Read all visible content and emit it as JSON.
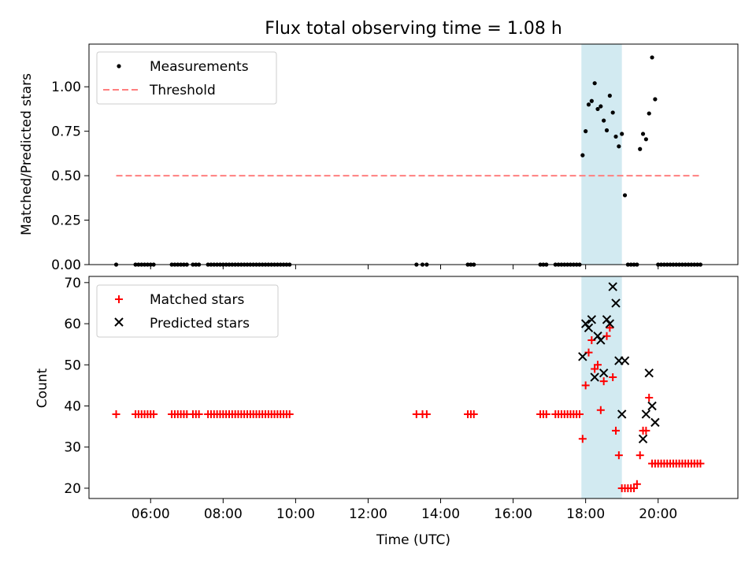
{
  "chart_data": [
    {
      "type": "scatter",
      "title": "Flux total observing time = 1.08 h",
      "ylabel": "Matched/Predicted stars",
      "xlim_hours": [
        4.3,
        22.2
      ],
      "ylim": [
        0,
        1.24
      ],
      "yticks": [
        "0.00",
        "0.25",
        "0.50",
        "0.75",
        "1.00"
      ],
      "shaded_region": {
        "from": "17:53",
        "to": "19:00",
        "color": "#add8e6"
      },
      "legend": {
        "placement": "top-left",
        "entries": [
          "Measurements",
          "Threshold"
        ]
      },
      "threshold": {
        "name": "Threshold",
        "value": 0.5,
        "x_start": "05:03",
        "x_end": "21:10",
        "color": "#ff7f7f",
        "style": "dashed"
      },
      "measurements": {
        "name": "Measurements",
        "color": "#000000",
        "x": [
          "05:03",
          "05:35",
          "05:40",
          "05:45",
          "05:50",
          "05:55",
          "06:00",
          "06:05",
          "06:35",
          "06:40",
          "06:45",
          "06:50",
          "06:55",
          "07:00",
          "07:10",
          "07:15",
          "07:20",
          "07:35",
          "07:40",
          "07:45",
          "07:50",
          "07:55",
          "08:00",
          "08:05",
          "08:10",
          "08:15",
          "08:20",
          "08:25",
          "08:30",
          "08:35",
          "08:40",
          "08:45",
          "08:50",
          "08:55",
          "09:00",
          "09:05",
          "09:10",
          "09:15",
          "09:20",
          "09:25",
          "09:30",
          "09:35",
          "09:40",
          "09:45",
          "09:50",
          "13:20",
          "13:30",
          "13:37",
          "14:45",
          "14:50",
          "14:55",
          "16:45",
          "16:50",
          "16:55",
          "17:10",
          "17:15",
          "17:20",
          "17:25",
          "17:30",
          "17:35",
          "17:40",
          "17:45",
          "17:50",
          "17:55",
          "18:00",
          "18:05",
          "18:10",
          "18:15",
          "18:20",
          "18:25",
          "18:30",
          "18:35",
          "18:40",
          "18:45",
          "18:50",
          "18:55",
          "19:00",
          "19:05",
          "19:10",
          "19:15",
          "19:20",
          "19:25",
          "19:30",
          "19:35",
          "19:40",
          "19:45",
          "19:50",
          "19:55",
          "20:00",
          "20:05",
          "20:10",
          "20:15",
          "20:20",
          "20:25",
          "20:30",
          "20:35",
          "20:40",
          "20:45",
          "20:50",
          "20:55",
          "21:00",
          "21:05",
          "21:10"
        ],
        "y": [
          0,
          0,
          0,
          0,
          0,
          0,
          0,
          0,
          0,
          0,
          0,
          0,
          0,
          0,
          0,
          0,
          0,
          0,
          0,
          0,
          0,
          0,
          0,
          0,
          0,
          0,
          0,
          0,
          0,
          0,
          0,
          0,
          0,
          0,
          0,
          0,
          0,
          0,
          0,
          0,
          0,
          0,
          0,
          0,
          0,
          0,
          0,
          0,
          0,
          0,
          0,
          0,
          0,
          0,
          0,
          0,
          0,
          0,
          0,
          0,
          0,
          0,
          0,
          0.615,
          0.75,
          0.9,
          0.92,
          1.02,
          0.875,
          0.89,
          0.81,
          0.755,
          0.95,
          0.855,
          0.72,
          0.665,
          0.735,
          0.39,
          0,
          0,
          0,
          0,
          0.65,
          0.735,
          0.705,
          0.85,
          1.165,
          0.93,
          0,
          0,
          0,
          0,
          0,
          0,
          0,
          0,
          0,
          0,
          0,
          0,
          0,
          0,
          0
        ]
      }
    },
    {
      "type": "scatter",
      "xlabel": "Time (UTC)",
      "ylabel": "Count",
      "xlim_hours": [
        4.3,
        22.2
      ],
      "xticks": [
        "06:00",
        "08:00",
        "10:00",
        "12:00",
        "14:00",
        "16:00",
        "18:00",
        "20:00"
      ],
      "ylim": [
        17.5,
        71.5
      ],
      "yticks": [
        "20",
        "30",
        "40",
        "50",
        "60",
        "70"
      ],
      "shaded_region": {
        "from": "17:53",
        "to": "19:00",
        "color": "#add8e6"
      },
      "legend": {
        "placement": "top-left",
        "entries": [
          "Matched stars",
          "Predicted stars"
        ]
      },
      "series": [
        {
          "name": "Matched stars",
          "marker": "+",
          "color": "#ff0000",
          "x": [
            "05:03",
            "05:35",
            "05:40",
            "05:45",
            "05:50",
            "05:55",
            "06:00",
            "06:05",
            "06:35",
            "06:40",
            "06:45",
            "06:50",
            "06:55",
            "07:00",
            "07:10",
            "07:15",
            "07:20",
            "07:35",
            "07:40",
            "07:45",
            "07:50",
            "07:55",
            "08:00",
            "08:05",
            "08:10",
            "08:15",
            "08:20",
            "08:25",
            "08:30",
            "08:35",
            "08:40",
            "08:45",
            "08:50",
            "08:55",
            "09:00",
            "09:05",
            "09:10",
            "09:15",
            "09:20",
            "09:25",
            "09:30",
            "09:35",
            "09:40",
            "09:45",
            "09:50",
            "13:20",
            "13:30",
            "13:37",
            "14:45",
            "14:50",
            "14:55",
            "16:45",
            "16:50",
            "16:55",
            "17:10",
            "17:15",
            "17:20",
            "17:25",
            "17:30",
            "17:35",
            "17:40",
            "17:45",
            "17:50",
            "17:55",
            "18:00",
            "18:05",
            "18:10",
            "18:15",
            "18:20",
            "18:25",
            "18:30",
            "18:35",
            "18:40",
            "18:45",
            "18:50",
            "18:55",
            "19:00",
            "19:05",
            "19:10",
            "19:15",
            "19:20",
            "19:25",
            "19:30",
            "19:35",
            "19:40",
            "19:45",
            "19:50",
            "19:55",
            "20:00",
            "20:05",
            "20:10",
            "20:15",
            "20:20",
            "20:25",
            "20:30",
            "20:35",
            "20:40",
            "20:45",
            "20:50",
            "20:55",
            "21:00",
            "21:05",
            "21:10"
          ],
          "y": [
            38,
            38,
            38,
            38,
            38,
            38,
            38,
            38,
            38,
            38,
            38,
            38,
            38,
            38,
            38,
            38,
            38,
            38,
            38,
            38,
            38,
            38,
            38,
            38,
            38,
            38,
            38,
            38,
            38,
            38,
            38,
            38,
            38,
            38,
            38,
            38,
            38,
            38,
            38,
            38,
            38,
            38,
            38,
            38,
            38,
            38,
            38,
            38,
            38,
            38,
            38,
            38,
            38,
            38,
            38,
            38,
            38,
            38,
            38,
            38,
            38,
            38,
            38,
            32,
            45,
            53,
            56,
            49,
            50,
            39,
            46,
            57,
            59,
            47,
            34,
            28,
            20,
            20,
            20,
            20,
            20,
            21,
            28,
            34,
            34,
            42,
            26,
            26,
            26,
            26,
            26,
            26,
            26,
            26,
            26,
            26,
            26,
            26,
            26,
            26,
            26,
            26,
            26
          ]
        },
        {
          "name": "Predicted stars",
          "marker": "x",
          "color": "#000000",
          "x": [
            "17:55",
            "18:00",
            "18:05",
            "18:10",
            "18:15",
            "18:20",
            "18:25",
            "18:30",
            "18:35",
            "18:40",
            "18:45",
            "18:50",
            "18:55",
            "19:00",
            "19:05",
            "19:35",
            "19:40",
            "19:45",
            "19:50",
            "19:55"
          ],
          "y": [
            52,
            60,
            59,
            61,
            47,
            57,
            56,
            48,
            61,
            60,
            69,
            65,
            51,
            38,
            51,
            32,
            38,
            48,
            40,
            36
          ]
        }
      ]
    }
  ]
}
